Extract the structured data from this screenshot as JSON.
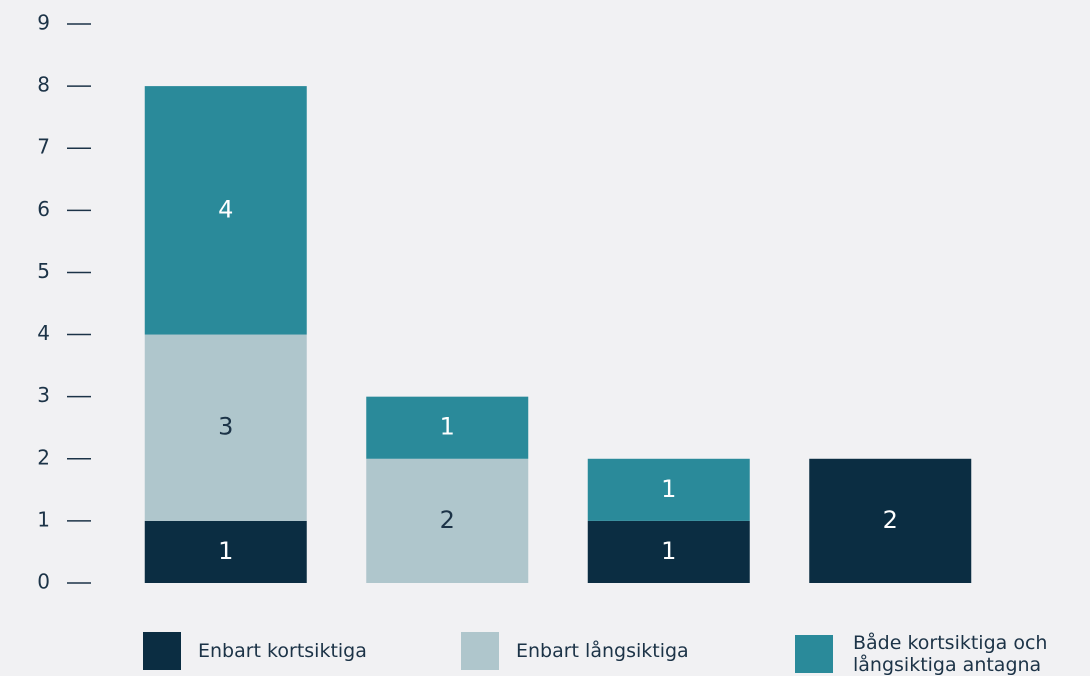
{
  "chart_data": {
    "type": "stacked-bar",
    "categories": [
      null,
      null,
      null,
      null
    ],
    "series": [
      {
        "name": "Enbart kortsiktiga",
        "color": "#0b2d42",
        "values": [
          1,
          0,
          1,
          2
        ]
      },
      {
        "name": "Enbart långsiktiga",
        "color": "#afc6cc",
        "values": [
          3,
          2,
          0,
          0
        ]
      },
      {
        "name": "Både kortsiktiga och långsiktiga antagna",
        "color": "#2a8a9a",
        "values": [
          4,
          1,
          1,
          0
        ]
      }
    ],
    "ylim": [
      0,
      9
    ],
    "yticks": [
      0,
      1,
      2,
      3,
      4,
      5,
      6,
      7,
      8,
      9
    ],
    "grid": false
  }
}
